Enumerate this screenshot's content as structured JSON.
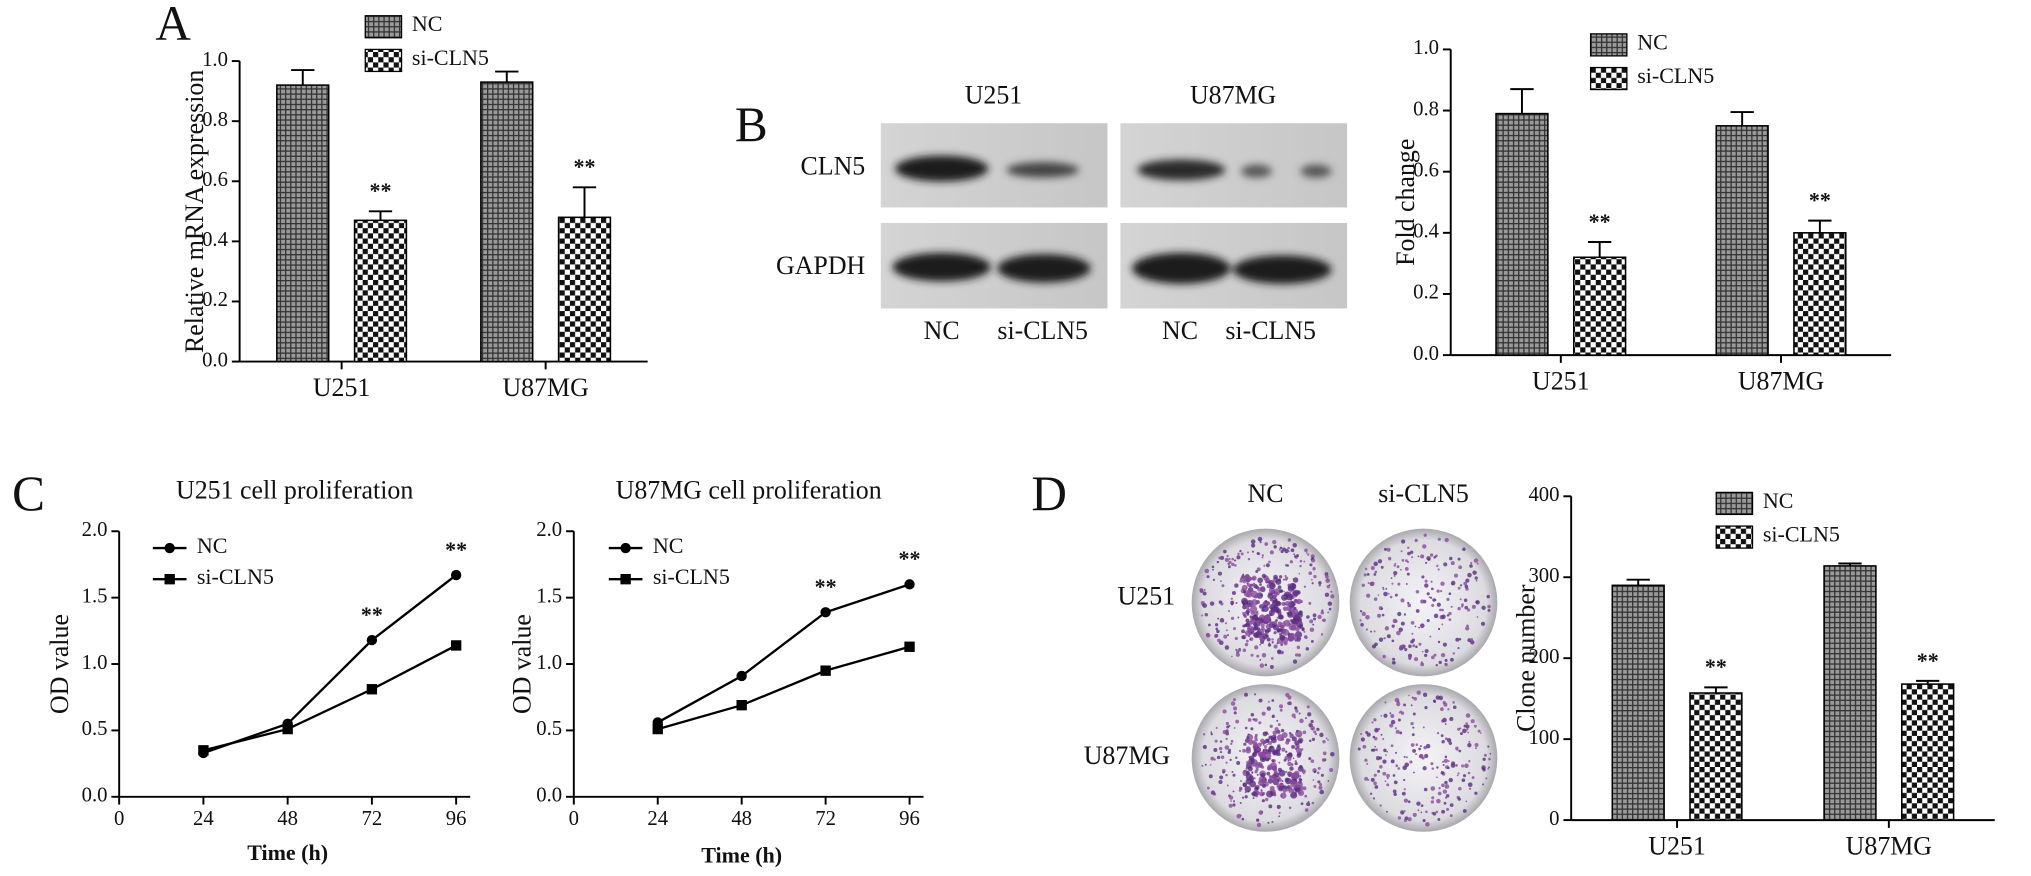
{
  "panel_labels": [
    "A",
    "B",
    "C",
    "D"
  ],
  "blot": {
    "cell_lines": [
      "U251",
      "U87MG"
    ],
    "proteins": [
      "CLN5",
      "GAPDH"
    ],
    "lanes": [
      "NC",
      "si-CLN5",
      "NC",
      "si-CLN5"
    ]
  },
  "colony": {
    "columns": [
      "NC",
      "si-CLN5"
    ],
    "rows": [
      "U251",
      "U87MG"
    ]
  },
  "chart_data": [
    {
      "type": "bar",
      "y_label": "Relative mRNA expression",
      "categories": [
        "U251",
        "U87MG"
      ],
      "series": [
        {
          "name": "NC",
          "pattern": "crosshatch",
          "values": [
            0.92,
            0.93
          ],
          "errors": [
            0.05,
            0.035
          ]
        },
        {
          "name": "si-CLN5",
          "pattern": "checker",
          "values": [
            0.47,
            0.48
          ],
          "errors": [
            0.03,
            0.1
          ]
        }
      ],
      "annotations": [
        {
          "text": "**",
          "category": "U251"
        },
        {
          "text": "**",
          "category": "U87MG"
        }
      ],
      "ylim": [
        0,
        1.0
      ],
      "yticks": [
        {
          "value": 0,
          "label": "0.0"
        },
        {
          "value": 0.2,
          "label": "0.2"
        },
        {
          "value": 0.4,
          "label": "0.4"
        },
        {
          "value": 0.6,
          "label": "0.6"
        },
        {
          "value": 0.8,
          "label": "0.8"
        },
        {
          "value": 1.0,
          "label": "1.0"
        }
      ]
    },
    {
      "type": "bar",
      "y_label": "Fold change",
      "categories": [
        "U251",
        "U87MG"
      ],
      "series": [
        {
          "name": "NC",
          "pattern": "crosshatch",
          "values": [
            0.79,
            0.75
          ],
          "errors": [
            0.08,
            0.045
          ]
        },
        {
          "name": "si-CLN5",
          "pattern": "checker",
          "values": [
            0.32,
            0.4
          ],
          "errors": [
            0.05,
            0.04
          ]
        }
      ],
      "annotations": [
        {
          "text": "**",
          "category": "U251"
        },
        {
          "text": "**",
          "category": "U87MG"
        }
      ],
      "ylim": [
        0,
        1.0
      ],
      "yticks": [
        {
          "value": 0,
          "label": "0.0"
        },
        {
          "value": 0.2,
          "label": "0.2"
        },
        {
          "value": 0.4,
          "label": "0.4"
        },
        {
          "value": 0.6,
          "label": "0.6"
        },
        {
          "value": 0.8,
          "label": "0.8"
        },
        {
          "value": 1.0,
          "label": "1.0"
        }
      ]
    },
    {
      "type": "line",
      "title": "U251 cell proliferation",
      "x_label": "Time (h)",
      "y_label": "OD value",
      "x": [
        24,
        48,
        72,
        96
      ],
      "series": [
        {
          "name": "NC",
          "marker": "circle",
          "values": [
            0.33,
            0.55,
            1.18,
            1.67
          ]
        },
        {
          "name": "si-CLN5",
          "marker": "square",
          "values": [
            0.35,
            0.51,
            0.81,
            1.14
          ]
        }
      ],
      "annotations": [
        {
          "text": "**",
          "x": 72
        },
        {
          "text": "**",
          "x": 96
        }
      ],
      "xlim": [
        0,
        100
      ],
      "xticks": [
        0,
        24,
        48,
        72,
        96
      ],
      "ylim": [
        0,
        2.0
      ],
      "yticks": [
        {
          "value": 0,
          "label": "0.0"
        },
        {
          "value": 0.5,
          "label": "0.5"
        },
        {
          "value": 1.0,
          "label": "1.0"
        },
        {
          "value": 1.5,
          "label": "1.5"
        },
        {
          "value": 2.0,
          "label": "2.0"
        }
      ]
    },
    {
      "type": "line",
      "title": "U87MG cell proliferation",
      "x_label": "Time (h)",
      "y_label": "OD value",
      "x": [
        24,
        48,
        72,
        96
      ],
      "series": [
        {
          "name": "NC",
          "marker": "circle",
          "values": [
            0.56,
            0.91,
            1.39,
            1.6
          ]
        },
        {
          "name": "si-CLN5",
          "marker": "square",
          "values": [
            0.51,
            0.69,
            0.95,
            1.13
          ]
        }
      ],
      "annotations": [
        {
          "text": "**",
          "x": 72
        },
        {
          "text": "**",
          "x": 96
        }
      ],
      "xlim": [
        0,
        100
      ],
      "xticks": [
        0,
        24,
        48,
        72,
        96
      ],
      "ylim": [
        0,
        2.0
      ],
      "yticks": [
        {
          "value": 0,
          "label": "0.0"
        },
        {
          "value": 0.5,
          "label": "0.5"
        },
        {
          "value": 1.0,
          "label": "1.0"
        },
        {
          "value": 1.5,
          "label": "1.5"
        },
        {
          "value": 2.0,
          "label": "2.0"
        }
      ]
    },
    {
      "type": "bar",
      "y_label": "Clone number",
      "categories": [
        "U251",
        "U87MG"
      ],
      "series": [
        {
          "name": "NC",
          "pattern": "crosshatch",
          "values": [
            290,
            314
          ],
          "errors": [
            7,
            3
          ]
        },
        {
          "name": "si-CLN5",
          "pattern": "checker",
          "values": [
            157,
            168
          ],
          "errors": [
            7,
            4
          ]
        }
      ],
      "annotations": [
        {
          "text": "**",
          "category": "U251"
        },
        {
          "text": "**",
          "category": "U87MG"
        }
      ],
      "ylim": [
        0,
        400
      ],
      "yticks": [
        0,
        100,
        200,
        300,
        400
      ]
    }
  ]
}
